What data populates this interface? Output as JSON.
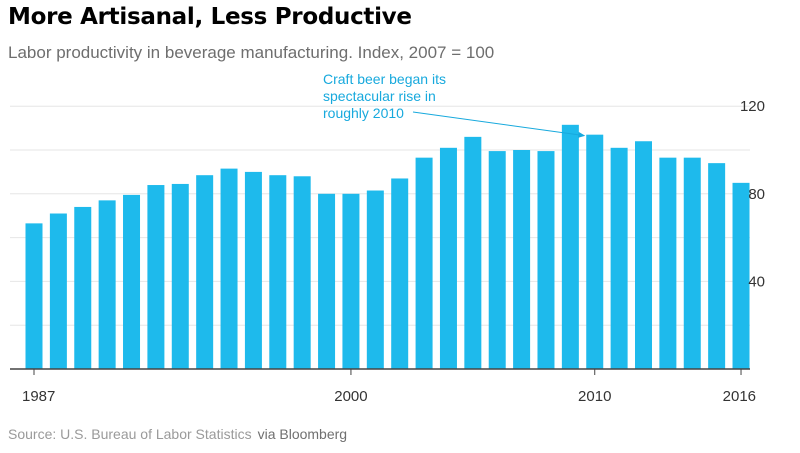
{
  "header": {
    "title": "More Artisanal, Less Productive",
    "subtitle": "Labor productivity in beverage manufacturing. Index, 2007 = 100"
  },
  "footer": {
    "source": "Source: U.S. Bureau of Labor Statistics",
    "via": "via Bloomberg"
  },
  "colors": {
    "bar": "#1ebaec",
    "annotation": "#17a9dd"
  },
  "chart_data": {
    "type": "bar",
    "title": "More Artisanal, Less Productive",
    "subtitle": "Labor productivity in beverage manufacturing. Index, 2007 = 100",
    "xlabel": "",
    "ylabel": "",
    "ylim": [
      0,
      120
    ],
    "yticks": [
      40,
      80,
      120
    ],
    "xtick_labels": [
      "1987",
      "2000",
      "2010",
      "2016"
    ],
    "categories": [
      "1987",
      "1988",
      "1989",
      "1990",
      "1991",
      "1992",
      "1993",
      "1994",
      "1995",
      "1996",
      "1997",
      "1998",
      "1999",
      "2000",
      "2001",
      "2002",
      "2003",
      "2004",
      "2005",
      "2006",
      "2007",
      "2008",
      "2009",
      "2010",
      "2011",
      "2012",
      "2013",
      "2014",
      "2015",
      "2016"
    ],
    "values": [
      66.5,
      71,
      74,
      77,
      79.5,
      84,
      84.5,
      88.5,
      91.5,
      90,
      88.5,
      88,
      80,
      80,
      81.5,
      87,
      96.5,
      101,
      106,
      99.5,
      100,
      99.5,
      111.5,
      107,
      101,
      104,
      96.5,
      96.5,
      94,
      85
    ],
    "grid": true,
    "annotation": {
      "lines": [
        "Craft beer began its",
        "spectacular rise in",
        "roughly 2010"
      ],
      "target_category": "2010"
    }
  }
}
